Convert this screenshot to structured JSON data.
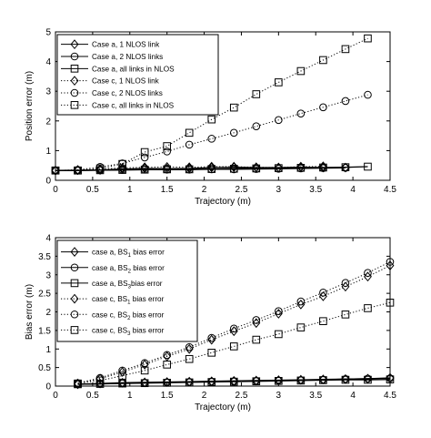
{
  "chart_data": [
    {
      "type": "line",
      "xlabel": "Trajectory (m)",
      "ylabel": "Position error (m)",
      "xlim": [
        0,
        4.5
      ],
      "ylim": [
        0,
        5
      ],
      "xticks": [
        "0",
        "0.5",
        "1",
        "1.5",
        "2",
        "2.5",
        "3",
        "3.5",
        "4",
        "4.5"
      ],
      "yticks": [
        "0",
        "1",
        "2",
        "3",
        "4",
        "5"
      ],
      "grid": false,
      "legend_position": "top-left",
      "series": [
        {
          "name": "Case a, 1 NLOS link",
          "marker": "diamond",
          "style": "solid",
          "x": [
            0,
            0.3,
            0.6,
            0.9,
            1.2,
            1.5,
            1.8,
            2.1,
            2.4,
            2.7,
            3.0,
            3.3,
            3.6,
            3.9
          ],
          "y": [
            0.33,
            0.34,
            0.35,
            0.38,
            0.4,
            0.39,
            0.4,
            0.43,
            0.44,
            0.43,
            0.43,
            0.44,
            0.43,
            0.43
          ]
        },
        {
          "name": "Case a, 2  NLOS links",
          "marker": "circle",
          "style": "solid",
          "x": [
            0,
            0.3,
            0.6,
            0.9,
            1.2,
            1.5,
            1.8,
            2.1,
            2.4,
            2.7,
            3.0,
            3.3,
            3.6,
            3.9
          ],
          "y": [
            0.33,
            0.33,
            0.34,
            0.35,
            0.36,
            0.36,
            0.36,
            0.37,
            0.37,
            0.38,
            0.39,
            0.4,
            0.41,
            0.42
          ]
        },
        {
          "name": "Case a, all links in NLOS",
          "marker": "square",
          "style": "solid",
          "x": [
            0,
            0.3,
            0.6,
            0.9,
            1.2,
            1.5,
            1.8,
            2.1,
            2.4,
            2.7,
            3.0,
            3.3,
            3.6,
            3.9,
            4.2
          ],
          "y": [
            0.33,
            0.33,
            0.34,
            0.35,
            0.36,
            0.37,
            0.37,
            0.38,
            0.39,
            0.4,
            0.41,
            0.42,
            0.43,
            0.44,
            0.46
          ]
        },
        {
          "name": "Case c, 1 NLOS link",
          "marker": "diamond",
          "style": "dotted",
          "x": [
            0,
            0.3,
            0.6,
            0.9,
            1.2,
            1.5,
            1.8,
            2.1,
            2.4,
            2.7,
            3.0,
            3.3,
            3.6
          ],
          "y": [
            0.33,
            0.35,
            0.38,
            0.42,
            0.44,
            0.45,
            0.44,
            0.46,
            0.46,
            0.44,
            0.43,
            0.46,
            0.47
          ]
        },
        {
          "name": "Case c, 2 NLOS links",
          "marker": "circle",
          "style": "dotted",
          "x": [
            0,
            0.3,
            0.6,
            0.9,
            1.2,
            1.5,
            1.8,
            2.1,
            2.4,
            2.7,
            3.0,
            3.3,
            3.6,
            3.9,
            4.2
          ],
          "y": [
            0.33,
            0.35,
            0.45,
            0.57,
            0.77,
            0.97,
            1.2,
            1.4,
            1.6,
            1.82,
            2.03,
            2.25,
            2.46,
            2.67,
            2.88
          ]
        },
        {
          "name": "Case c, all links in NLOS",
          "marker": "square",
          "style": "dotted",
          "x": [
            0,
            0.3,
            0.6,
            0.9,
            1.2,
            1.5,
            1.8,
            2.1,
            2.4,
            2.7,
            3.0,
            3.3,
            3.6,
            3.9,
            4.2
          ],
          "y": [
            0.33,
            0.33,
            0.4,
            0.55,
            0.95,
            1.15,
            1.6,
            2.05,
            2.45,
            2.9,
            3.3,
            3.68,
            4.05,
            4.42,
            4.78
          ]
        }
      ]
    },
    {
      "type": "line",
      "xlabel": "Trajectory (m)",
      "ylabel": "Bias error (m)",
      "xlim": [
        0,
        4.5
      ],
      "ylim": [
        0,
        4
      ],
      "xticks": [
        "0",
        "0.5",
        "1",
        "1.5",
        "2",
        "2.5",
        "3",
        "3.5",
        "4",
        "4.5"
      ],
      "yticks": [
        "0",
        "0.5",
        "1",
        "1.5",
        "2",
        "2.5",
        "3",
        "3.5",
        "4"
      ],
      "grid": false,
      "legend_position": "top-left",
      "series": [
        {
          "name": "case a, BS1 bias error",
          "name_main": "case a, BS",
          "name_sub": "1",
          "name_tail": " bias error",
          "marker": "diamond",
          "style": "solid",
          "x": [
            0.3,
            0.6,
            0.9,
            1.2,
            1.5,
            1.8,
            2.1,
            2.4,
            2.7,
            3.0,
            3.3,
            3.6,
            3.9,
            4.2,
            4.5
          ],
          "y": [
            0.05,
            0.07,
            0.09,
            0.1,
            0.11,
            0.12,
            0.13,
            0.14,
            0.15,
            0.16,
            0.17,
            0.18,
            0.19,
            0.2,
            0.22
          ]
        },
        {
          "name": "case a, BS2 bias error",
          "name_main": "case a, BS",
          "name_sub": "2",
          "name_tail": " bias error",
          "marker": "circle",
          "style": "solid",
          "x": [
            0.3,
            0.6,
            0.9,
            1.2,
            1.5,
            1.8,
            2.1,
            2.4,
            2.7,
            3.0,
            3.3,
            3.6,
            3.9,
            4.2,
            4.5
          ],
          "y": [
            0.05,
            0.06,
            0.08,
            0.09,
            0.1,
            0.11,
            0.12,
            0.13,
            0.14,
            0.15,
            0.16,
            0.17,
            0.19,
            0.2,
            0.21
          ]
        },
        {
          "name": "case a, BS3 bias error",
          "name_main": "case a, BS",
          "name_sub": "3",
          "name_tail": "bias error",
          "marker": "square",
          "style": "solid",
          "x": [
            0.3,
            0.6,
            0.9,
            1.2,
            1.5,
            1.8,
            2.1,
            2.4,
            2.7,
            3.0,
            3.3,
            3.6,
            3.9,
            4.2,
            4.5
          ],
          "y": [
            0.05,
            0.06,
            0.07,
            0.08,
            0.09,
            0.1,
            0.11,
            0.12,
            0.13,
            0.14,
            0.15,
            0.16,
            0.17,
            0.17,
            0.18
          ]
        },
        {
          "name": "case c, BS1 bias error",
          "name_main": "case c, BS",
          "name_sub": "1",
          "name_tail": " bias error",
          "marker": "diamond",
          "style": "dotted",
          "x": [
            0.3,
            0.6,
            0.9,
            1.2,
            1.5,
            1.8,
            2.1,
            2.4,
            2.7,
            3.0,
            3.3,
            3.6,
            3.9,
            4.2,
            4.5
          ],
          "y": [
            0.07,
            0.2,
            0.38,
            0.58,
            0.8,
            1.0,
            1.25,
            1.48,
            1.7,
            1.95,
            2.2,
            2.42,
            2.68,
            2.95,
            3.25
          ]
        },
        {
          "name": "case c, BS2 bias error",
          "name_main": "case c, BS",
          "name_sub": "2",
          "name_tail": " bias error",
          "marker": "circle",
          "style": "dotted",
          "x": [
            0.3,
            0.6,
            0.9,
            1.2,
            1.5,
            1.8,
            2.1,
            2.4,
            2.7,
            3.0,
            3.3,
            3.6,
            3.9,
            4.2,
            4.5
          ],
          "y": [
            0.08,
            0.22,
            0.42,
            0.62,
            0.84,
            1.05,
            1.3,
            1.55,
            1.78,
            2.02,
            2.28,
            2.52,
            2.78,
            3.05,
            3.35
          ]
        },
        {
          "name": "case c, BS3 bias error",
          "name_main": "case c, BS",
          "name_sub": "3",
          "name_tail": " bias error",
          "marker": "square",
          "style": "dotted",
          "x": [
            0.3,
            0.6,
            0.9,
            1.2,
            1.5,
            1.8,
            2.1,
            2.4,
            2.7,
            3.0,
            3.3,
            3.6,
            3.9,
            4.2,
            4.5
          ],
          "y": [
            0.07,
            0.15,
            0.28,
            0.42,
            0.58,
            0.73,
            0.9,
            1.07,
            1.25,
            1.4,
            1.58,
            1.75,
            1.93,
            2.1,
            2.25
          ]
        }
      ]
    }
  ]
}
